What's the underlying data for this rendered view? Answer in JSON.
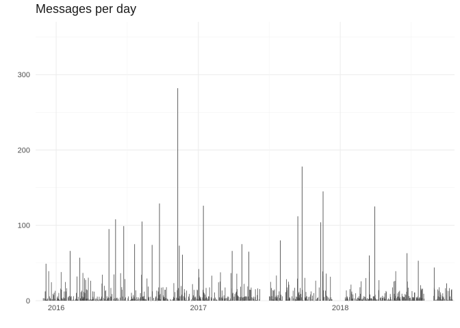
{
  "chart_data": {
    "type": "bar",
    "title": "Messages per day",
    "xlabel": "",
    "ylabel": "",
    "x_ticks": [
      "2016",
      "2017",
      "2018"
    ],
    "y_ticks": [
      "0",
      "100",
      "200",
      "300"
    ],
    "ylim": [
      0,
      370
    ],
    "xlim": [
      "2015-11-09",
      "2018-10-22"
    ],
    "grid": true,
    "bar_color": "#4d4d4d",
    "peaks": [
      {
        "x": "2015-12-05",
        "y": 49
      },
      {
        "x": "2016-02-05",
        "y": 66
      },
      {
        "x": "2016-03-01",
        "y": 57
      },
      {
        "x": "2016-05-15",
        "y": 95
      },
      {
        "x": "2016-06-01",
        "y": 108
      },
      {
        "x": "2016-06-22",
        "y": 99
      },
      {
        "x": "2016-07-20",
        "y": 75
      },
      {
        "x": "2016-08-08",
        "y": 105
      },
      {
        "x": "2016-09-03",
        "y": 74
      },
      {
        "x": "2016-09-22",
        "y": 129
      },
      {
        "x": "2016-11-08",
        "y": 282
      },
      {
        "x": "2016-11-12",
        "y": 73
      },
      {
        "x": "2016-11-20",
        "y": 61
      },
      {
        "x": "2017-01-01",
        "y": 42
      },
      {
        "x": "2017-01-13",
        "y": 126
      },
      {
        "x": "2017-03-28",
        "y": 66
      },
      {
        "x": "2017-04-22",
        "y": 75
      },
      {
        "x": "2017-05-10",
        "y": 65
      },
      {
        "x": "2017-07-30",
        "y": 80
      },
      {
        "x": "2017-09-13",
        "y": 112
      },
      {
        "x": "2017-09-24",
        "y": 178
      },
      {
        "x": "2017-11-11",
        "y": 104
      },
      {
        "x": "2017-11-17",
        "y": 145
      },
      {
        "x": "2018-03-16",
        "y": 60
      },
      {
        "x": "2018-03-30",
        "y": 125
      },
      {
        "x": "2018-06-21",
        "y": 63
      },
      {
        "x": "2018-07-20",
        "y": 53
      },
      {
        "x": "2018-08-30",
        "y": 44
      },
      {
        "x": "2018-10-01",
        "y": 23
      },
      {
        "x": "2018-10-14",
        "y": 15
      }
    ]
  }
}
